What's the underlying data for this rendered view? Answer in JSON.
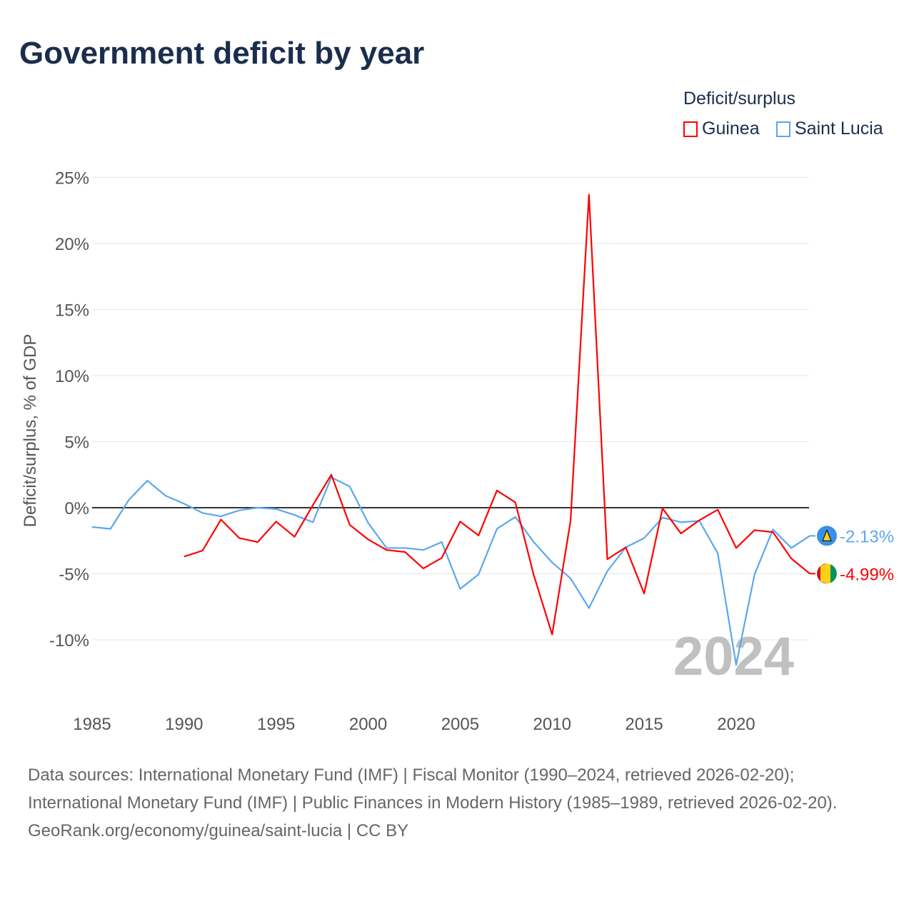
{
  "title": "Government deficit by year",
  "legend": {
    "title": "Deficit/surplus",
    "items": [
      {
        "label": "Guinea",
        "color": "#ff0000"
      },
      {
        "label": "Saint Lucia",
        "color": "#5aa7ee"
      }
    ]
  },
  "chart_data": {
    "type": "line",
    "title": "Government deficit by year",
    "xlabel": "",
    "ylabel": "Deficit/surplus, % of GDP",
    "xlim": [
      1985,
      2024
    ],
    "ylim": [
      -13,
      26
    ],
    "x_ticks": [
      "1985",
      "1990",
      "1995",
      "2000",
      "2005",
      "2010",
      "2015",
      "2020"
    ],
    "y_ticks": [
      {
        "v": 25,
        "label": "25%"
      },
      {
        "v": 20,
        "label": "20%"
      },
      {
        "v": 15,
        "label": "15%"
      },
      {
        "v": 10,
        "label": "10%"
      },
      {
        "v": 5,
        "label": "5%"
      },
      {
        "v": 0,
        "label": "0%"
      },
      {
        "v": -5,
        "label": "-5%"
      },
      {
        "v": -10,
        "label": "-10%"
      }
    ],
    "watermark_year": "2024",
    "series": [
      {
        "name": "Guinea",
        "color": "#ff0000",
        "start_year": 1990,
        "end_label": "-4.99%",
        "values": [
          -3.7,
          -3.25,
          -0.9,
          -2.3,
          -2.6,
          -1.05,
          -2.2,
          0.2,
          2.5,
          -1.3,
          -2.4,
          -3.2,
          -3.35,
          -4.6,
          -3.8,
          -1.05,
          -2.1,
          1.3,
          0.4,
          -5.1,
          -9.6,
          -1.0,
          23.7,
          -3.9,
          -3.0,
          -6.5,
          -0.05,
          -1.95,
          -0.95,
          -0.15,
          -3.05,
          -1.7,
          -1.85,
          -3.85,
          -4.99
        ]
      },
      {
        "name": "Saint Lucia",
        "color": "#5aa7ee",
        "start_year": 1985,
        "end_label": "-2.13%",
        "values": [
          -1.46,
          -1.6,
          0.6,
          2.05,
          0.9,
          0.3,
          -0.4,
          -0.65,
          -0.2,
          0,
          -0.1,
          -0.55,
          -1.1,
          2.3,
          1.6,
          -1.15,
          -3.05,
          -3.05,
          -3.2,
          -2.6,
          -6.15,
          -5.05,
          -1.6,
          -0.7,
          -2.6,
          -4.15,
          -5.35,
          -7.6,
          -4.8,
          -3.0,
          -2.3,
          -0.75,
          -1.1,
          -1.0,
          -3.45,
          -11.9,
          -5.05,
          -1.65,
          -3.05,
          -2.13
        ]
      }
    ]
  },
  "footer": {
    "sources": "Data sources: International Monetary Fund (IMF) | Fiscal Monitor (1990–2024, retrieved 2026-02-20); International Monetary Fund (IMF) | Public Finances in Modern History (1985–1989, retrieved 2026-02-20).",
    "credit": "GeoRank.org/economy/guinea/saint-lucia | CC BY"
  }
}
